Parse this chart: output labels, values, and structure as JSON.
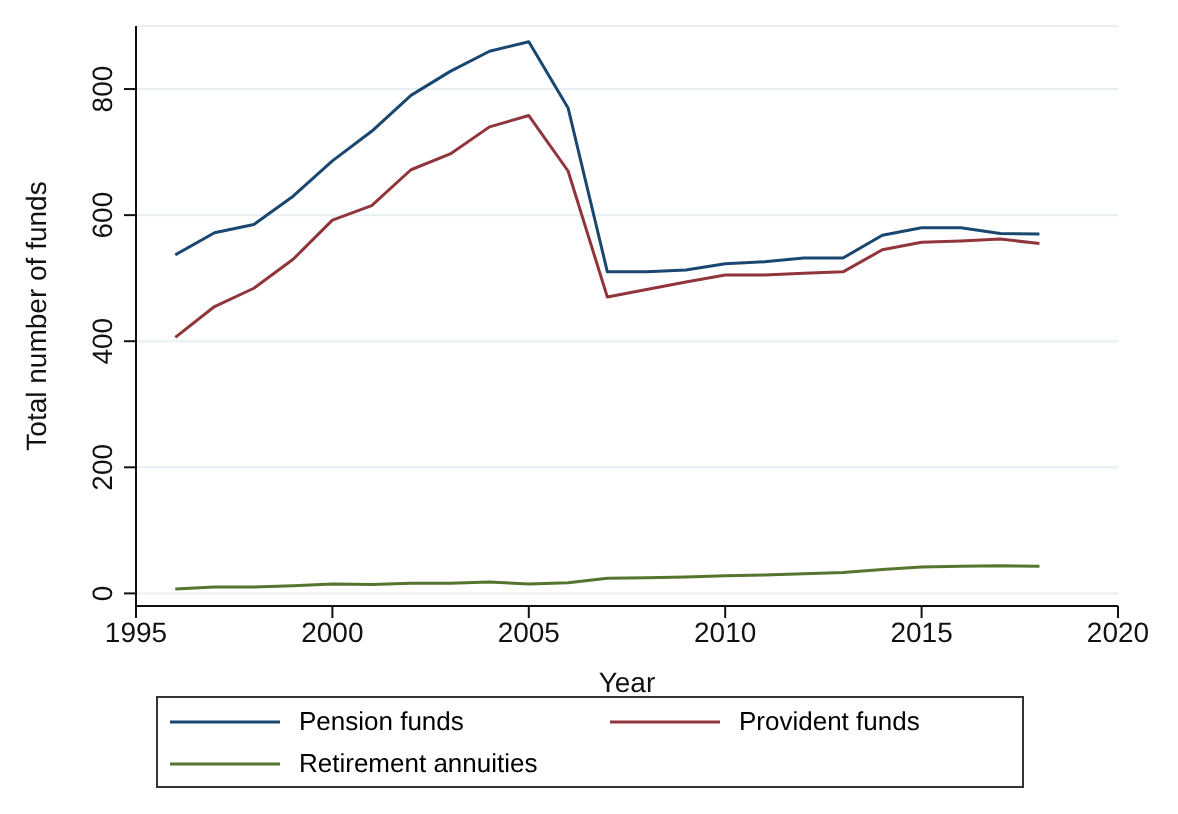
{
  "chart_data": {
    "type": "line",
    "xlabel": "Year",
    "ylabel": "Total number of funds",
    "x": [
      1996,
      1997,
      1998,
      1999,
      2000,
      2001,
      2002,
      2003,
      2004,
      2005,
      2006,
      2007,
      2008,
      2009,
      2010,
      2011,
      2012,
      2013,
      2014,
      2015,
      2016,
      2017,
      2018
    ],
    "series": [
      {
        "name": "Pension funds",
        "color": "#1a476f",
        "values": [
          537,
          572,
          585,
          630,
          686,
          733,
          790,
          828,
          860,
          875,
          770,
          510,
          510,
          513,
          523,
          526,
          532,
          532,
          568,
          580,
          580,
          571,
          570
        ]
      },
      {
        "name": "Provident funds",
        "color": "#90353b",
        "values": [
          406,
          455,
          484,
          530,
          592,
          615,
          672,
          697,
          740,
          758,
          670,
          470,
          482,
          494,
          505,
          505,
          508,
          510,
          545,
          557,
          559,
          562,
          555
        ]
      },
      {
        "name": "Retirement annuities",
        "color": "#55752f",
        "values": [
          7,
          10,
          10,
          12,
          15,
          14,
          16,
          16,
          18,
          15,
          17,
          24,
          25,
          26,
          28,
          29,
          31,
          33,
          38,
          42,
          43,
          44,
          43
        ]
      }
    ],
    "xlim": [
      1995,
      2020
    ],
    "xticks": [
      1995,
      2000,
      2005,
      2010,
      2015,
      2020
    ],
    "ylim": [
      -20,
      900
    ],
    "yticks": [
      0,
      200,
      400,
      600,
      800
    ],
    "grid": "y",
    "legend": "bottom",
    "marker": "none",
    "line_style": "solid"
  }
}
